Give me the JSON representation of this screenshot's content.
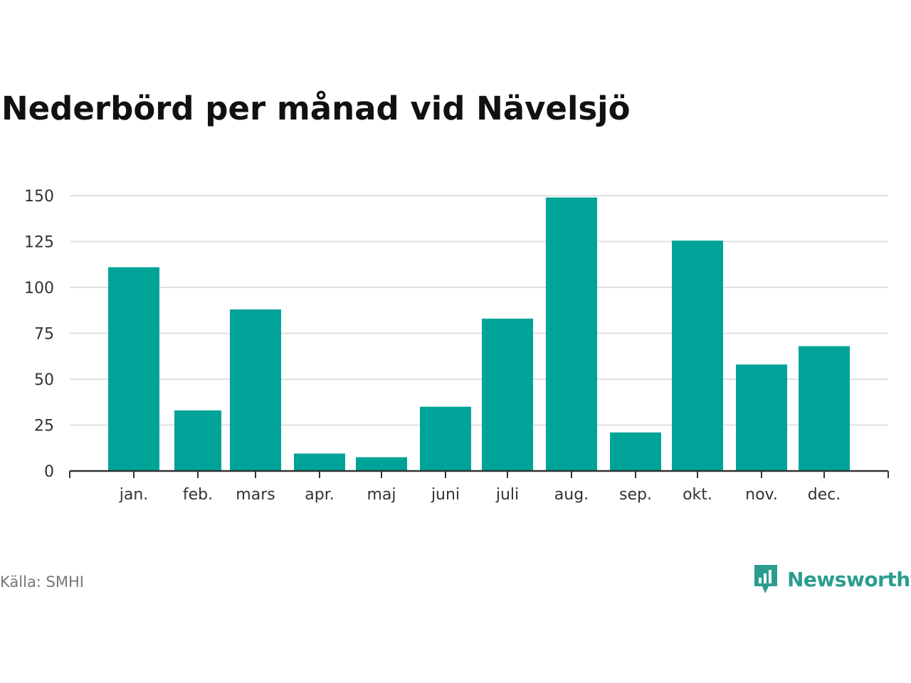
{
  "title": "Nederbörd per månad vid Nävelsjö",
  "source": "Källa: SMHI",
  "brand": {
    "name": "Newsworthy",
    "icon": "newsworthy-logo-icon",
    "color": "#2a9d8f"
  },
  "colors": {
    "bar": "#00a398",
    "grid": "#e0e0e0",
    "axis": "#333333",
    "text": "#333333"
  },
  "chart_data": {
    "type": "bar",
    "title": "Nederbörd per månad vid Nävelsjö",
    "xlabel": "",
    "ylabel": "",
    "categories": [
      "jan.",
      "feb.",
      "mars",
      "apr.",
      "maj",
      "juni",
      "juli",
      "aug.",
      "sep.",
      "okt.",
      "nov.",
      "dec."
    ],
    "values": [
      111,
      33,
      88,
      9.5,
      7.5,
      35,
      83,
      149,
      21,
      125.5,
      58,
      68
    ],
    "ylim": [
      0,
      150
    ],
    "yticks": [
      0,
      25,
      50,
      75,
      100,
      125,
      150
    ],
    "grid": true,
    "legend": "none"
  }
}
